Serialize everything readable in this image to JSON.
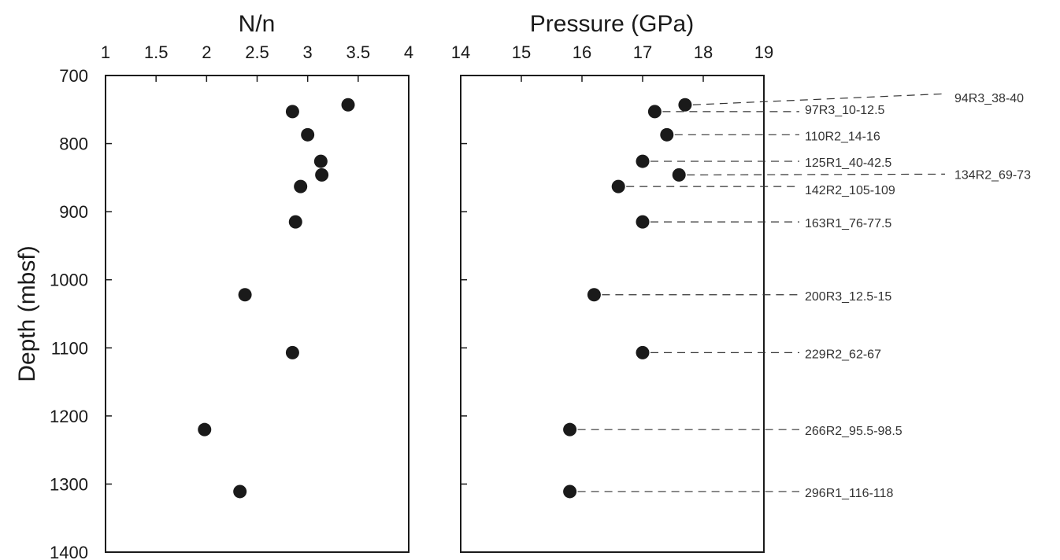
{
  "chart_data": [
    {
      "type": "scatter",
      "title": "",
      "xlabel": "N/n",
      "ylabel": "Depth (mbsf)",
      "xlim": [
        1,
        4
      ],
      "ylim": [
        700,
        1400
      ],
      "x_ticks": [
        "1",
        "1.5",
        "2",
        "2.5",
        "3",
        "3.5",
        "4"
      ],
      "y_ticks": [
        "700",
        "800",
        "900",
        "1000",
        "1100",
        "1200",
        "1300",
        "1400"
      ],
      "y_inverted": true,
      "x_axis_position": "top",
      "grid": false,
      "points": [
        {
          "x": 3.4,
          "y": 743
        },
        {
          "x": 2.85,
          "y": 753
        },
        {
          "x": 3.0,
          "y": 787
        },
        {
          "x": 3.13,
          "y": 826
        },
        {
          "x": 3.14,
          "y": 846
        },
        {
          "x": 2.93,
          "y": 863
        },
        {
          "x": 2.88,
          "y": 915
        },
        {
          "x": 2.38,
          "y": 1022
        },
        {
          "x": 2.85,
          "y": 1107
        },
        {
          "x": 1.98,
          "y": 1220
        },
        {
          "x": 2.33,
          "y": 1311
        }
      ]
    },
    {
      "type": "scatter",
      "title": "",
      "xlabel": "Pressure (GPa)",
      "ylabel": "",
      "xlim": [
        14,
        19
      ],
      "ylim": [
        700,
        1400
      ],
      "x_ticks": [
        "14",
        "15",
        "16",
        "17",
        "18",
        "19"
      ],
      "y_inverted": true,
      "x_axis_position": "top",
      "grid": false,
      "points": [
        {
          "x": 17.7,
          "y": 743,
          "label": "94R3_38-40"
        },
        {
          "x": 17.2,
          "y": 753,
          "label": "97R3_10-12.5"
        },
        {
          "x": 17.4,
          "y": 787,
          "label": "110R2_14-16"
        },
        {
          "x": 17.0,
          "y": 826,
          "label": "125R1_40-42.5"
        },
        {
          "x": 17.6,
          "y": 846,
          "label": "134R2_69-73"
        },
        {
          "x": 16.6,
          "y": 863,
          "label": "142R2_105-109"
        },
        {
          "x": 17.0,
          "y": 915,
          "label": "163R1_76-77.5"
        },
        {
          "x": 16.2,
          "y": 1022,
          "label": "200R3_12.5-15"
        },
        {
          "x": 17.0,
          "y": 1107,
          "label": "229R2_62-67"
        },
        {
          "x": 15.8,
          "y": 1220,
          "label": "266R2_95.5-98.5"
        },
        {
          "x": 15.8,
          "y": 1311,
          "label": "296R1_116-118"
        }
      ]
    }
  ]
}
